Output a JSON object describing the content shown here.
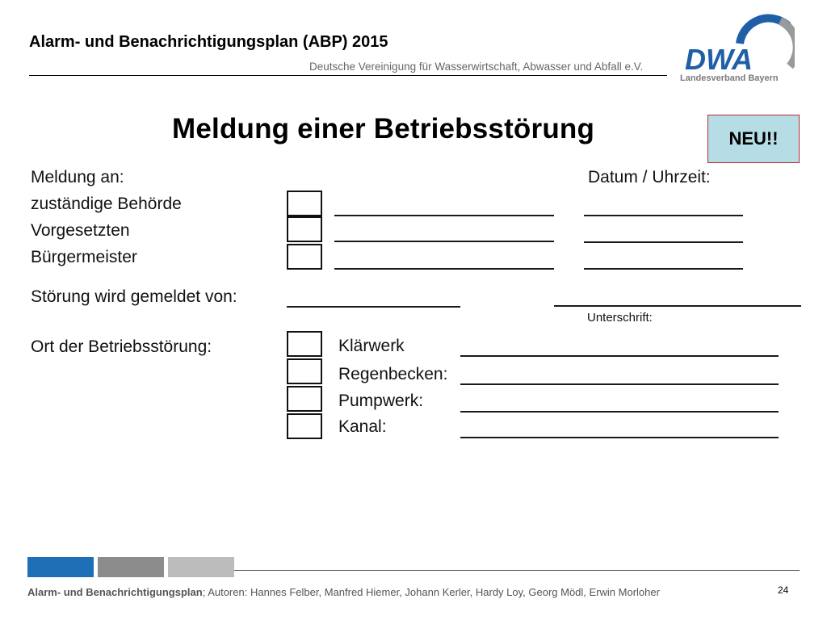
{
  "header": {
    "title": "Alarm- und Benachrichtigungsplan (ABP) 2015",
    "subtitle": "Deutsche Vereinigung für Wasserwirtschaft, Abwasser und Abfall e.V."
  },
  "logo": {
    "wordmark": "DWA",
    "tagline": "Landesverband Bayern",
    "colors": {
      "blue": "#1f5fa8",
      "grey": "#9a9a9a"
    }
  },
  "badge": {
    "label": "NEU!!",
    "fill": "#b6dde6",
    "border": "#c0272d"
  },
  "form": {
    "heading": "Meldung einer Betriebsstörung",
    "report_to_label": "Meldung an:",
    "datetime_label": "Datum / Uhrzeit:",
    "recipients": [
      "zuständige Behörde",
      "Vorgesetzten",
      "Bürgermeister"
    ],
    "reported_by_label": "Störung wird gemeldet von:",
    "signature_label": "Unterschrift:",
    "location_label": "Ort der Betriebsstörung:",
    "locations": [
      "Klärwerk",
      "Regenbecken:",
      "Pumpwerk:",
      "Kanal:"
    ]
  },
  "footer": {
    "title_bold": "Alarm- und Benachrichtigungsplan",
    "authors": "; Autoren: Hannes Felber, Manfred Hiemer, Johann Kerler, Hardy Loy, Georg Mödl, Erwin Morloher",
    "page_number": "24",
    "bar_colors": [
      "#1f6fb7",
      "#8c8c8c",
      "#bcbcbc"
    ]
  }
}
